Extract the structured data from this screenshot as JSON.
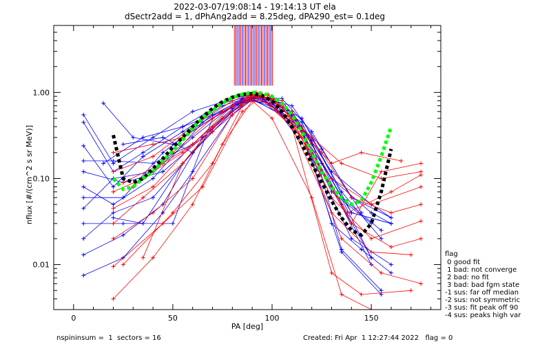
{
  "chart_data": {
    "type": "line",
    "title": "2022-03-07/19:08:14 - 19:14:13 UT ela",
    "subtitle": "dSectr2add = 1, dPhAng2add = 8.25deg, dPA290_est=    0.1deg",
    "xlabel": "PA [deg]",
    "ylabel": "nflux [#/(cm^2 s sr MeV)]",
    "xlim": [
      -10,
      185
    ],
    "ylim": [
      0.003,
      6.0
    ],
    "yscale": "log",
    "xticks": [
      0,
      50,
      100,
      150
    ],
    "xtick_labels": [
      "0",
      "50",
      "100",
      "150"
    ],
    "yticks": [
      0.01,
      0.1,
      1.0
    ],
    "ytick_labels": [
      "0.01",
      "0.10",
      "1.00"
    ],
    "grid": false,
    "colors": {
      "blue": "#0000ff",
      "red": "#ff0000",
      "black": "#000000",
      "green": "#00ff00"
    },
    "footer": {
      "left": "nspininsum =  1  sectors = 16",
      "right": "Created: Fri Apr  1 12:27:44 2022   flag = 0"
    },
    "legend": {
      "title": "flag",
      "entries": [
        " 0 good fit",
        " 1 bad: not converge",
        " 2 bad: no fit",
        " 3 bad: bad fgm state",
        "-1 sus: far off median",
        "-2 sus: not symmetric",
        "-3 sus: fit peak off 90",
        "-4 sus: peaks high var"
      ]
    },
    "fit_black": {
      "x": [
        20,
        25,
        30,
        35,
        40,
        45,
        50,
        55,
        60,
        65,
        70,
        75,
        80,
        85,
        90,
        95,
        100,
        105,
        110,
        115,
        120,
        125,
        130,
        135,
        140,
        145,
        150,
        155,
        160
      ],
      "y": [
        0.32,
        0.1,
        0.09,
        0.1,
        0.13,
        0.17,
        0.23,
        0.3,
        0.4,
        0.52,
        0.65,
        0.78,
        0.88,
        0.95,
        0.97,
        0.92,
        0.8,
        0.6,
        0.4,
        0.25,
        0.15,
        0.09,
        0.055,
        0.035,
        0.025,
        0.022,
        0.03,
        0.07,
        0.22
      ]
    },
    "fit_green": {
      "x": [
        20,
        25,
        30,
        35,
        40,
        45,
        50,
        55,
        60,
        65,
        70,
        75,
        80,
        85,
        90,
        95,
        100,
        105,
        110,
        115,
        120,
        125,
        130,
        135,
        140,
        145,
        150,
        155,
        160
      ],
      "y": [
        0.1,
        0.075,
        0.08,
        0.1,
        0.12,
        0.16,
        0.21,
        0.28,
        0.38,
        0.5,
        0.62,
        0.75,
        0.87,
        0.95,
        1.0,
        0.98,
        0.9,
        0.75,
        0.55,
        0.35,
        0.2,
        0.12,
        0.08,
        0.06,
        0.05,
        0.055,
        0.09,
        0.18,
        0.4
      ]
    },
    "series_blue": [
      {
        "x": [
          5,
          20,
          40,
          60,
          80,
          90,
          100,
          115,
          130,
          150,
          160
        ],
        "y": [
          0.55,
          0.15,
          0.3,
          0.6,
          0.85,
          0.95,
          0.9,
          0.4,
          0.1,
          0.04,
          0.03
        ]
      },
      {
        "x": [
          5,
          20,
          35,
          55,
          75,
          90,
          105,
          120,
          135,
          155
        ],
        "y": [
          0.45,
          0.12,
          0.2,
          0.4,
          0.75,
          0.92,
          0.8,
          0.25,
          0.06,
          0.025
        ]
      },
      {
        "x": [
          5,
          20,
          35,
          55,
          75,
          90,
          105,
          125,
          140,
          160
        ],
        "y": [
          0.24,
          0.08,
          0.18,
          0.35,
          0.7,
          0.9,
          0.75,
          0.15,
          0.04,
          0.03
        ]
      },
      {
        "x": [
          5,
          20,
          40,
          60,
          80,
          90,
          110,
          130,
          150,
          160
        ],
        "y": [
          0.16,
          0.16,
          0.15,
          0.25,
          0.65,
          0.88,
          0.6,
          0.12,
          0.05,
          0.035
        ]
      },
      {
        "x": [
          5,
          25,
          45,
          65,
          85,
          95,
          115,
          135,
          155
        ],
        "y": [
          0.12,
          0.09,
          0.12,
          0.3,
          0.8,
          0.9,
          0.5,
          0.07,
          0.02
        ]
      },
      {
        "x": [
          5,
          20,
          40,
          65,
          85,
          95,
          115,
          135,
          150
        ],
        "y": [
          0.08,
          0.05,
          0.1,
          0.45,
          0.85,
          0.88,
          0.45,
          0.05,
          0.012
        ]
      },
      {
        "x": [
          5,
          25,
          45,
          70,
          85,
          95,
          120,
          140,
          160
        ],
        "y": [
          0.06,
          0.06,
          0.2,
          0.55,
          0.82,
          0.86,
          0.3,
          0.04,
          0.03
        ]
      },
      {
        "x": [
          5,
          20,
          40,
          60,
          80,
          90,
          115,
          130,
          145,
          160
        ],
        "y": [
          0.045,
          0.1,
          0.12,
          0.3,
          0.7,
          0.85,
          0.4,
          0.03,
          0.015,
          0.008
        ]
      },
      {
        "x": [
          5,
          25,
          50,
          70,
          85,
          95,
          120,
          135,
          155
        ],
        "y": [
          0.03,
          0.03,
          0.03,
          0.5,
          0.8,
          0.86,
          0.28,
          0.015,
          0.005
        ]
      },
      {
        "x": [
          5,
          20,
          40,
          60,
          80,
          90,
          110,
          130,
          150
        ],
        "y": [
          0.02,
          0.04,
          0.06,
          0.2,
          0.6,
          0.83,
          0.55,
          0.08,
          0.01
        ]
      },
      {
        "x": [
          5,
          25,
          45,
          65,
          85,
          95,
          115,
          135,
          155
        ],
        "y": [
          0.013,
          0.022,
          0.05,
          0.3,
          0.75,
          0.84,
          0.35,
          0.014,
          0.0045
        ]
      },
      {
        "x": [
          5,
          25,
          45,
          60,
          80,
          90,
          110,
          130,
          150
        ],
        "y": [
          0.0075,
          0.012,
          0.04,
          0.12,
          0.55,
          0.82,
          0.5,
          0.1,
          0.012
        ]
      },
      {
        "x": [
          15,
          30,
          50,
          70,
          90,
          105,
          120,
          140,
          160
        ],
        "y": [
          0.75,
          0.3,
          0.25,
          0.5,
          0.9,
          0.85,
          0.35,
          0.06,
          0.035
        ]
      },
      {
        "x": [
          15,
          35,
          55,
          75,
          92,
          110,
          125,
          145
        ],
        "y": [
          0.15,
          0.3,
          0.4,
          0.6,
          0.92,
          0.7,
          0.22,
          0.04
        ]
      },
      {
        "x": [
          20,
          35,
          55,
          70,
          88,
          100,
          120,
          140,
          160
        ],
        "y": [
          0.035,
          0.03,
          0.15,
          0.35,
          0.8,
          0.75,
          0.18,
          0.02,
          0.01
        ]
      },
      {
        "x": [
          25,
          45,
          60,
          75,
          90,
          110,
          130,
          150
        ],
        "y": [
          0.25,
          0.3,
          0.2,
          0.5,
          0.88,
          0.6,
          0.07,
          0.03
        ]
      }
    ],
    "series_red": [
      {
        "x": [
          20,
          40,
          55,
          75,
          90,
          100,
          120,
          135,
          155,
          175
        ],
        "y": [
          0.2,
          0.25,
          0.3,
          0.6,
          0.95,
          0.85,
          0.3,
          0.15,
          0.1,
          0.12
        ]
      },
      {
        "x": [
          20,
          40,
          60,
          80,
          92,
          110,
          130,
          150,
          175
        ],
        "y": [
          0.12,
          0.18,
          0.4,
          0.8,
          1.0,
          0.6,
          0.1,
          0.05,
          0.08
        ]
      },
      {
        "x": [
          20,
          35,
          55,
          75,
          90,
          105,
          125,
          140,
          160,
          175
        ],
        "y": [
          0.07,
          0.1,
          0.2,
          0.5,
          0.9,
          0.8,
          0.2,
          0.06,
          0.04,
          0.05
        ]
      },
      {
        "x": [
          20,
          40,
          60,
          80,
          90,
          110,
          130,
          150,
          175
        ],
        "y": [
          0.045,
          0.08,
          0.25,
          0.7,
          0.92,
          0.5,
          0.06,
          0.02,
          0.032
        ]
      },
      {
        "x": [
          20,
          35,
          55,
          70,
          88,
          105,
          125,
          140,
          160,
          175
        ],
        "y": [
          0.03,
          0.06,
          0.15,
          0.4,
          0.85,
          0.7,
          0.12,
          0.03,
          0.016,
          0.02
        ]
      },
      {
        "x": [
          20,
          40,
          60,
          80,
          92,
          110,
          130,
          150,
          170
        ],
        "y": [
          0.02,
          0.04,
          0.1,
          0.55,
          0.95,
          0.4,
          0.04,
          0.014,
          0.013
        ]
      },
      {
        "x": [
          20,
          45,
          65,
          85,
          95,
          115,
          135,
          155,
          175
        ],
        "y": [
          0.0095,
          0.03,
          0.08,
          0.6,
          0.9,
          0.3,
          0.02,
          0.008,
          0.006
        ]
      },
      {
        "x": [
          20,
          40,
          60,
          75,
          90,
          100,
          120,
          135,
          150
        ],
        "y": [
          0.004,
          0.012,
          0.05,
          0.25,
          0.8,
          0.5,
          0.06,
          0.0045,
          0.003
        ]
      },
      {
        "x": [
          25,
          45,
          70,
          88,
          98,
          118,
          138,
          160,
          175
        ],
        "y": [
          0.09,
          0.15,
          0.35,
          0.9,
          0.95,
          0.25,
          0.04,
          0.07,
          0.11
        ]
      },
      {
        "x": [
          30,
          50,
          70,
          90,
          100,
          115,
          130,
          145,
          165
        ],
        "y": [
          0.08,
          0.2,
          0.5,
          0.95,
          0.9,
          0.35,
          0.15,
          0.2,
          0.16
        ]
      },
      {
        "x": [
          25,
          50,
          70,
          85,
          95,
          110,
          130,
          145,
          170
        ],
        "y": [
          0.01,
          0.04,
          0.15,
          0.7,
          0.95,
          0.4,
          0.008,
          0.0045,
          0.005
        ]
      },
      {
        "x": [
          35,
          55,
          75,
          90,
          100,
          120,
          140,
          155,
          175
        ],
        "y": [
          0.012,
          0.15,
          0.5,
          0.9,
          0.85,
          0.2,
          0.03,
          0.12,
          0.15
        ]
      }
    ],
    "spikes": [
      {
        "x": 81.0,
        "color": "red"
      },
      {
        "x": 81.8,
        "color": "blue"
      },
      {
        "x": 82.6,
        "color": "red"
      },
      {
        "x": 83.4,
        "color": "blue"
      },
      {
        "x": 84.2,
        "color": "red"
      },
      {
        "x": 85.0,
        "color": "blue"
      },
      {
        "x": 85.8,
        "color": "red"
      },
      {
        "x": 86.6,
        "color": "blue"
      },
      {
        "x": 87.4,
        "color": "red"
      },
      {
        "x": 88.2,
        "color": "blue"
      },
      {
        "x": 89.0,
        "color": "red"
      },
      {
        "x": 89.8,
        "color": "blue"
      },
      {
        "x": 90.6,
        "color": "red"
      },
      {
        "x": 91.4,
        "color": "blue"
      },
      {
        "x": 92.2,
        "color": "red"
      },
      {
        "x": 93.0,
        "color": "blue"
      },
      {
        "x": 93.8,
        "color": "red"
      },
      {
        "x": 94.6,
        "color": "blue"
      },
      {
        "x": 95.4,
        "color": "red"
      },
      {
        "x": 96.2,
        "color": "blue"
      },
      {
        "x": 97.0,
        "color": "red"
      },
      {
        "x": 97.8,
        "color": "blue"
      },
      {
        "x": 98.6,
        "color": "red"
      },
      {
        "x": 99.4,
        "color": "blue"
      },
      {
        "x": 100.2,
        "color": "red"
      }
    ],
    "spike_range": [
      1.2,
      6.0
    ]
  }
}
